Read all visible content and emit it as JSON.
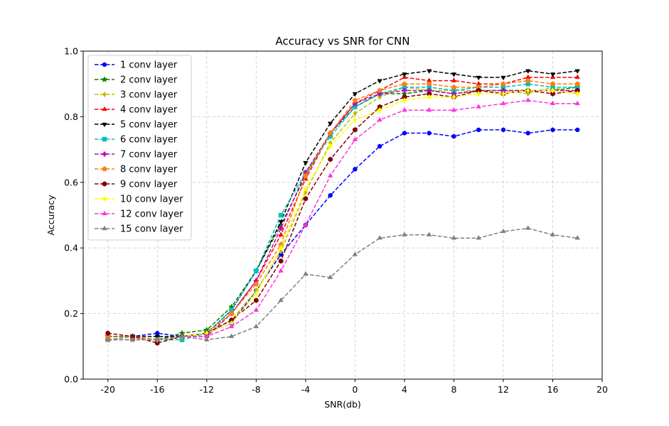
{
  "chart_data": {
    "type": "line",
    "title": "Accuracy vs SNR for CNN",
    "xlabel": "SNR(db)",
    "ylabel": "Accuracy",
    "xlim": [
      -22,
      20
    ],
    "ylim": [
      0.0,
      1.0
    ],
    "xticks": [
      -20,
      -16,
      -12,
      -8,
      -4,
      0,
      4,
      8,
      12,
      16,
      20
    ],
    "yticks": [
      0.0,
      0.2,
      0.4,
      0.6,
      0.8,
      1.0
    ],
    "xtick_labels": [
      "-20",
      "-16",
      "-12",
      "-8",
      "-4",
      "0",
      "4",
      "8",
      "12",
      "16",
      "20"
    ],
    "ytick_labels": [
      "0.0",
      "0.2",
      "0.4",
      "0.6",
      "0.8",
      "1.0"
    ],
    "grid": true,
    "legend_position": "top-left",
    "x": [
      -20,
      -18,
      -16,
      -14,
      -12,
      -10,
      -8,
      -6,
      -4,
      -2,
      0,
      2,
      4,
      6,
      8,
      10,
      12,
      14,
      16,
      18
    ],
    "series": [
      {
        "name": "1 conv layer",
        "color": "#0000ff",
        "marker": "circle",
        "values": [
          0.13,
          0.13,
          0.14,
          0.13,
          0.14,
          0.17,
          0.27,
          0.38,
          0.47,
          0.56,
          0.64,
          0.71,
          0.75,
          0.75,
          0.74,
          0.76,
          0.76,
          0.75,
          0.76,
          0.76
        ]
      },
      {
        "name": "2 conv layer",
        "color": "#008000",
        "marker": "star",
        "values": [
          0.13,
          0.13,
          0.12,
          0.14,
          0.15,
          0.22,
          0.33,
          0.47,
          0.62,
          0.75,
          0.83,
          0.87,
          0.87,
          0.88,
          0.87,
          0.88,
          0.88,
          0.88,
          0.88,
          0.89
        ]
      },
      {
        "name": "3 conv layer",
        "color": "#bfbf00",
        "marker": "diamond",
        "values": [
          0.12,
          0.13,
          0.12,
          0.13,
          0.14,
          0.18,
          0.27,
          0.39,
          0.57,
          0.72,
          0.81,
          0.86,
          0.89,
          0.88,
          0.88,
          0.88,
          0.88,
          0.87,
          0.89,
          0.87
        ]
      },
      {
        "name": "4 conv layer",
        "color": "#ff0000",
        "marker": "triangle-up",
        "values": [
          0.13,
          0.13,
          0.12,
          0.13,
          0.14,
          0.2,
          0.3,
          0.44,
          0.61,
          0.75,
          0.84,
          0.88,
          0.92,
          0.91,
          0.91,
          0.9,
          0.9,
          0.92,
          0.92,
          0.92
        ]
      },
      {
        "name": "5 conv layer",
        "color": "#000000",
        "marker": "triangle-down",
        "values": [
          0.13,
          0.13,
          0.13,
          0.13,
          0.14,
          0.21,
          0.33,
          0.48,
          0.66,
          0.78,
          0.87,
          0.91,
          0.93,
          0.94,
          0.93,
          0.92,
          0.92,
          0.94,
          0.93,
          0.94
        ]
      },
      {
        "name": "6 conv layer",
        "color": "#00bfbf",
        "marker": "square",
        "values": [
          0.12,
          0.13,
          0.12,
          0.12,
          0.14,
          0.21,
          0.33,
          0.5,
          0.63,
          0.74,
          0.83,
          0.87,
          0.89,
          0.89,
          0.88,
          0.89,
          0.89,
          0.9,
          0.89,
          0.89
        ]
      },
      {
        "name": "7 conv layer",
        "color": "#bf00bf",
        "marker": "plus",
        "values": [
          0.12,
          0.12,
          0.12,
          0.13,
          0.13,
          0.2,
          0.3,
          0.46,
          0.63,
          0.75,
          0.84,
          0.87,
          0.88,
          0.88,
          0.87,
          0.88,
          0.88,
          0.88,
          0.88,
          0.88
        ]
      },
      {
        "name": "8 conv layer",
        "color": "#ff7f0e",
        "marker": "pentagon",
        "values": [
          0.13,
          0.13,
          0.12,
          0.13,
          0.14,
          0.2,
          0.29,
          0.41,
          0.62,
          0.75,
          0.85,
          0.88,
          0.9,
          0.9,
          0.89,
          0.89,
          0.9,
          0.91,
          0.9,
          0.9
        ]
      },
      {
        "name": "9 conv layer",
        "color": "#800000",
        "marker": "hexagon",
        "values": [
          0.14,
          0.13,
          0.11,
          0.13,
          0.14,
          0.18,
          0.24,
          0.36,
          0.55,
          0.67,
          0.76,
          0.83,
          0.86,
          0.87,
          0.86,
          0.88,
          0.87,
          0.88,
          0.87,
          0.88
        ]
      },
      {
        "name": "10 conv layer",
        "color": "#ffff00",
        "marker": "diamond",
        "values": [
          0.12,
          0.12,
          0.12,
          0.13,
          0.14,
          0.17,
          0.26,
          0.4,
          0.58,
          0.71,
          0.79,
          0.82,
          0.85,
          0.86,
          0.86,
          0.87,
          0.87,
          0.88,
          0.88,
          0.87
        ]
      },
      {
        "name": "12 conv layer",
        "color": "#ff33dd",
        "marker": "triangle-up",
        "values": [
          0.12,
          0.12,
          0.12,
          0.13,
          0.13,
          0.16,
          0.21,
          0.33,
          0.47,
          0.62,
          0.73,
          0.79,
          0.82,
          0.82,
          0.82,
          0.83,
          0.84,
          0.85,
          0.84,
          0.84
        ]
      },
      {
        "name": "15 conv layer",
        "color": "#808080",
        "marker": "triangle-up",
        "values": [
          0.12,
          0.12,
          0.12,
          0.13,
          0.12,
          0.13,
          0.16,
          0.24,
          0.32,
          0.31,
          0.38,
          0.43,
          0.44,
          0.44,
          0.43,
          0.43,
          0.45,
          0.46,
          0.44,
          0.43
        ]
      }
    ]
  }
}
